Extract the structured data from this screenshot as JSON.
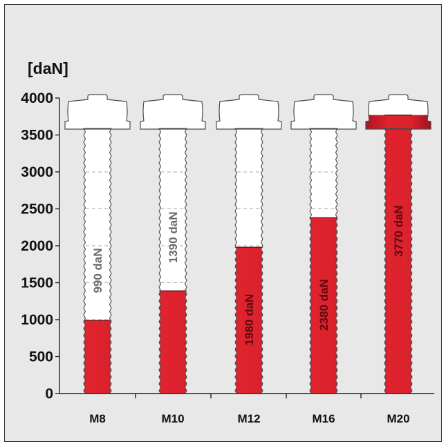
{
  "chart_data": {
    "type": "bar",
    "unit_label": "[daN]",
    "categories": [
      "M8",
      "M10",
      "M12",
      "M16",
      "M20"
    ],
    "values": [
      990,
      1390,
      1980,
      2380,
      3770
    ],
    "data_labels": [
      "990 daN",
      "1390 daN",
      "1980 daN",
      "2380 daN",
      "3770 daN"
    ],
    "ylim": [
      0,
      4000
    ],
    "yticks": [
      0,
      500,
      1000,
      1500,
      2000,
      2500,
      3000,
      3500,
      4000
    ],
    "grid": "dashed inside bars",
    "legend": "none",
    "colors": {
      "fill": "#d9212c",
      "fill_dark": "#a51520",
      "bolt_body": "#ffffff",
      "outline": "#4a4a4a",
      "label_on_white": "#6a6a6a",
      "label_on_red": "#5a0a10",
      "background": "#e8e8e8"
    }
  }
}
